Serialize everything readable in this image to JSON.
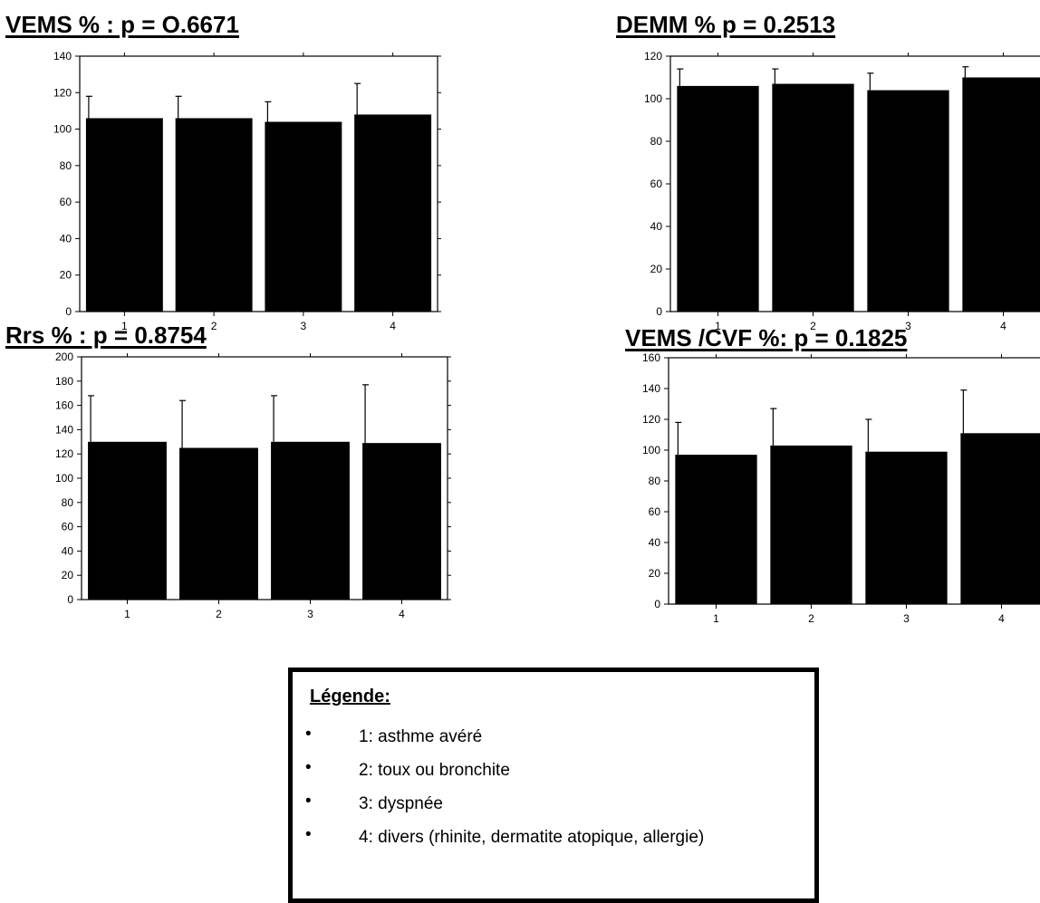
{
  "chart_data": [
    {
      "type": "bar",
      "title": "VEMS % : p = O.6671",
      "categories": [
        "1",
        "2",
        "3",
        "4"
      ],
      "values": [
        106,
        106,
        104,
        108
      ],
      "errors": [
        12,
        12,
        11,
        17
      ],
      "ylim": [
        0,
        140
      ],
      "yticks": [
        0,
        20,
        40,
        60,
        80,
        100,
        120,
        140
      ],
      "xlabel": "",
      "ylabel": "",
      "color": "#000000"
    },
    {
      "type": "bar",
      "title": "DEMM % p = 0.2513",
      "categories": [
        "1",
        "2",
        "3",
        "4"
      ],
      "values": [
        106,
        107,
        104,
        110
      ],
      "errors": [
        8,
        7,
        8,
        5
      ],
      "ylim": [
        0,
        120
      ],
      "yticks": [
        0,
        20,
        40,
        60,
        80,
        100,
        120
      ],
      "xlabel": "",
      "ylabel": "",
      "color": "#000000"
    },
    {
      "type": "bar",
      "title": "Rrs % : p = 0.8754",
      "categories": [
        "1",
        "2",
        "3",
        "4"
      ],
      "values": [
        130,
        125,
        130,
        129
      ],
      "errors": [
        38,
        39,
        38,
        48
      ],
      "ylim": [
        0,
        200
      ],
      "yticks": [
        0,
        20,
        40,
        60,
        80,
        100,
        120,
        140,
        160,
        180,
        200
      ],
      "xlabel": "",
      "ylabel": "",
      "color": "#000000"
    },
    {
      "type": "bar",
      "title": "VEMS /CVF %: p = 0.1825",
      "categories": [
        "1",
        "2",
        "3",
        "4"
      ],
      "values": [
        97,
        103,
        99,
        111
      ],
      "errors": [
        21,
        24,
        21,
        28
      ],
      "ylim": [
        0,
        160
      ],
      "yticks": [
        0,
        20,
        40,
        60,
        80,
        100,
        120,
        140,
        160
      ],
      "xlabel": "",
      "ylabel": "",
      "color": "#000000"
    }
  ],
  "legend": {
    "title": "Légende:",
    "items": [
      "1: asthme avéré",
      "2: toux ou bronchite",
      "3: dyspnée",
      "4: divers (rhinite, dermatite atopique, allergie)"
    ]
  }
}
